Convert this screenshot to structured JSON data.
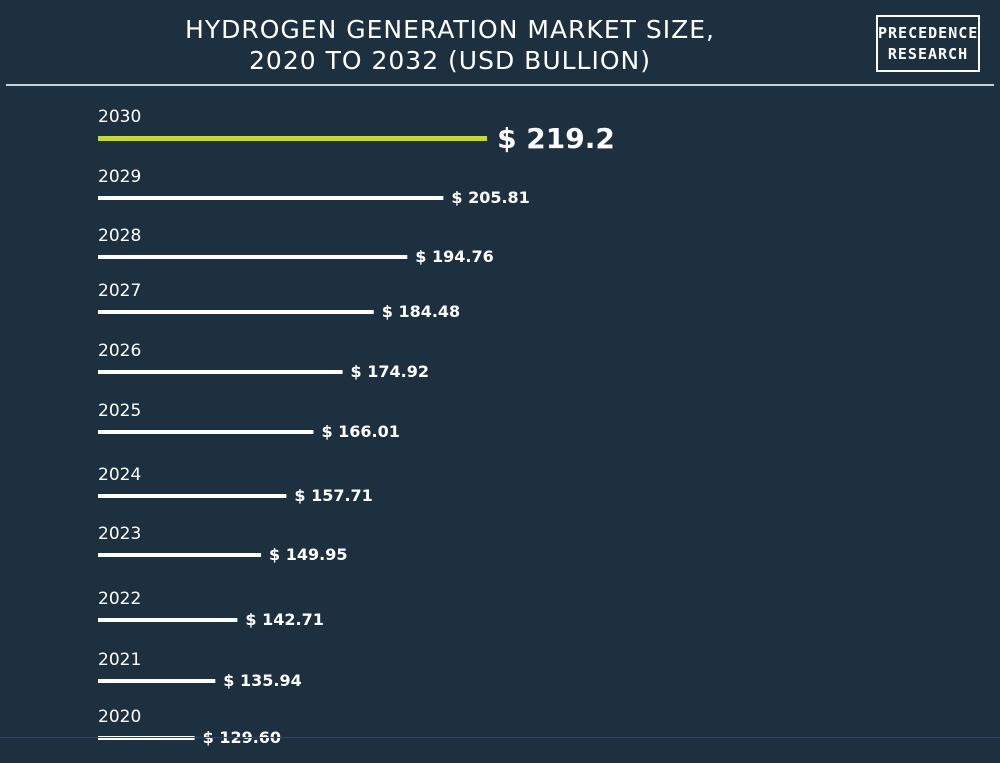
{
  "title_line1": "HYDROGEN GENERATION MARKET SIZE,",
  "title_line2": "2020 TO 2032 (USD BULLION)",
  "logo": {
    "line1": "PRECEDENCE",
    "line2": "RESEARCH"
  },
  "colors": {
    "background": "#1d3040",
    "bar": "#ffffff",
    "highlight_bar": "#c8de14",
    "text": "#ffffff"
  },
  "chart_data": {
    "type": "bar",
    "orientation": "horizontal",
    "title": "HYDROGEN GENERATION MARKET SIZE, 2020 TO 2032 (USD BULLION)",
    "value_prefix": "$ ",
    "highlight": "2030",
    "categories": [
      "2030",
      "2029",
      "2028",
      "2027",
      "2026",
      "2025",
      "2024",
      "2023",
      "2022",
      "2021",
      "2020"
    ],
    "values": [
      219.2,
      205.81,
      194.76,
      184.48,
      174.92,
      166.01,
      157.71,
      149.95,
      142.71,
      135.94,
      129.6
    ],
    "value_labels": [
      "219.2",
      "205.81",
      "194.76",
      "184.48",
      "174.92",
      "166.01",
      "157.71",
      "149.95",
      "142.71",
      "135.94",
      "129.60"
    ]
  }
}
